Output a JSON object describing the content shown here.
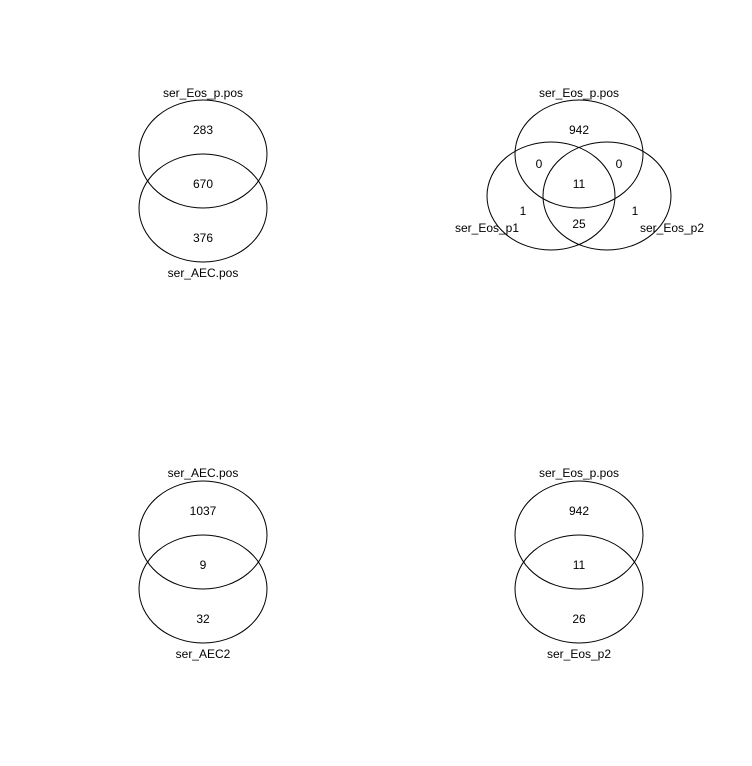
{
  "colors": {
    "stroke": "#000000",
    "background": "#ffffff",
    "text": "#000000"
  },
  "diagrams": [
    {
      "sets": [
        "ser_Eos_p.pos",
        "ser_AEC.pos"
      ],
      "regions": {
        "only_a": "283",
        "a_b": "670",
        "only_b": "376"
      }
    },
    {
      "sets": [
        "ser_Eos_p.pos",
        "ser_Eos_p1",
        "ser_Eos_p2"
      ],
      "regions": {
        "only_a": "942",
        "a_b": "0",
        "a_c": "0",
        "a_b_c": "11",
        "only_b": "1",
        "b_c": "25",
        "only_c": "1"
      }
    },
    {
      "sets": [
        "ser_AEC.pos",
        "ser_AEC2"
      ],
      "regions": {
        "only_a": "1037",
        "a_b": "9",
        "only_b": "32"
      }
    },
    {
      "sets": [
        "ser_Eos_p.pos",
        "ser_Eos_p2"
      ],
      "regions": {
        "only_a": "942",
        "a_b": "11",
        "only_b": "26"
      }
    }
  ]
}
